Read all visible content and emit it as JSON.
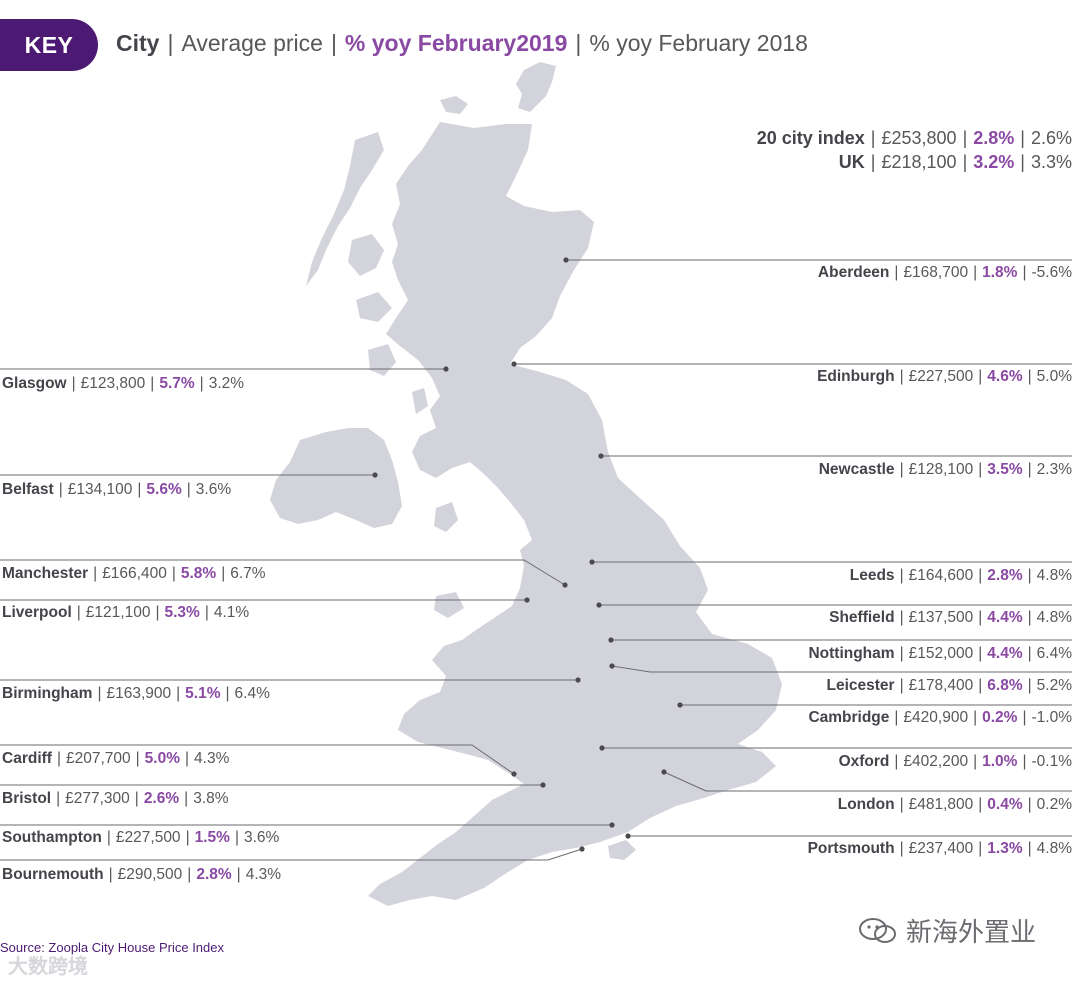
{
  "key": {
    "badge": "KEY",
    "city": "City",
    "avg": "Average price",
    "yoy2019": "% yoy February2019",
    "yoy2018": "% yoy February 2018",
    "separator": "|"
  },
  "colors": {
    "land": "#d3d3db",
    "leader": "#6b6b70",
    "accent": "#8a4aa3",
    "badge": "#4d1a73"
  },
  "summary": [
    {
      "name": "20 city index",
      "price": "£253,800",
      "yoy2019": "2.8%",
      "yoy2018": "2.6%"
    },
    {
      "name": "UK",
      "price": "£218,100",
      "yoy2019": "3.2%",
      "yoy2018": "3.3%"
    }
  ],
  "cities_left": [
    {
      "name": "Glasgow",
      "price": "£123,800",
      "yoy2019": "5.7%",
      "yoy2018": "3.2%"
    },
    {
      "name": "Belfast",
      "price": "£134,100",
      "yoy2019": "5.6%",
      "yoy2018": "3.6%"
    },
    {
      "name": "Manchester",
      "price": "£166,400",
      "yoy2019": "5.8%",
      "yoy2018": "6.7%"
    },
    {
      "name": "Liverpool",
      "price": "£121,100",
      "yoy2019": "5.3%",
      "yoy2018": "4.1%"
    },
    {
      "name": "Birmingham",
      "price": "£163,900",
      "yoy2019": "5.1%",
      "yoy2018": "6.4%"
    },
    {
      "name": "Cardiff",
      "price": "£207,700",
      "yoy2019": "5.0%",
      "yoy2018": "4.3%"
    },
    {
      "name": "Bristol",
      "price": "£277,300",
      "yoy2019": "2.6%",
      "yoy2018": "3.8%"
    },
    {
      "name": "Southampton",
      "price": "£227,500",
      "yoy2019": "1.5%",
      "yoy2018": "3.6%"
    },
    {
      "name": "Bournemouth",
      "price": "£290,500",
      "yoy2019": "2.8%",
      "yoy2018": "4.3%"
    }
  ],
  "cities_right": [
    {
      "name": "Aberdeen",
      "price": "£168,700",
      "yoy2019": "1.8%",
      "yoy2018": "-5.6%"
    },
    {
      "name": "Edinburgh",
      "price": "£227,500",
      "yoy2019": "4.6%",
      "yoy2018": "5.0%"
    },
    {
      "name": "Newcastle",
      "price": "£128,100",
      "yoy2019": "3.5%",
      "yoy2018": "2.3%"
    },
    {
      "name": "Leeds",
      "price": "£164,600",
      "yoy2019": "2.8%",
      "yoy2018": "4.8%"
    },
    {
      "name": "Sheffield",
      "price": "£137,500",
      "yoy2019": "4.4%",
      "yoy2018": "4.8%"
    },
    {
      "name": "Nottingham",
      "price": "£152,000",
      "yoy2019": "4.4%",
      "yoy2018": "6.4%"
    },
    {
      "name": "Leicester",
      "price": "£178,400",
      "yoy2019": "6.8%",
      "yoy2018": "5.2%"
    },
    {
      "name": "Cambridge",
      "price": "£420,900",
      "yoy2019": "0.2%",
      "yoy2018": "-1.0%"
    },
    {
      "name": "Oxford",
      "price": "£402,200",
      "yoy2019": "1.0%",
      "yoy2018": "-0.1%"
    },
    {
      "name": "London",
      "price": "£481,800",
      "yoy2019": "0.4%",
      "yoy2018": "0.2%"
    },
    {
      "name": "Portsmouth",
      "price": "£237,400",
      "yoy2019": "1.3%",
      "yoy2018": "4.8%"
    }
  ],
  "source": "Source: Zoopla City House Price Index",
  "watermark_left": "大数跨境",
  "watermark_right": "新海外置业"
}
